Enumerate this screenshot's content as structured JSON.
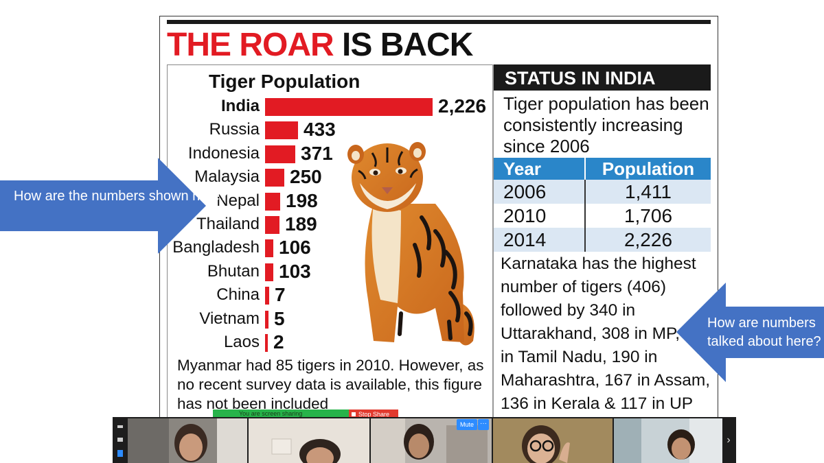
{
  "headline": {
    "red": "THE ROAR",
    "black": "IS BACK"
  },
  "population_chart": {
    "title": "Tiger Population",
    "rows": [
      {
        "country": "India",
        "value_label": "2,226"
      },
      {
        "country": "Russia",
        "value_label": "433"
      },
      {
        "country": "Indonesia",
        "value_label": "371"
      },
      {
        "country": "Malaysia",
        "value_label": "250"
      },
      {
        "country": "Nepal",
        "value_label": "198"
      },
      {
        "country": "Thailand",
        "value_label": "189"
      },
      {
        "country": "Bangladesh",
        "value_label": "106"
      },
      {
        "country": "Bhutan",
        "value_label": "103"
      },
      {
        "country": "China",
        "value_label": "7"
      },
      {
        "country": "Vietnam",
        "value_label": "5"
      },
      {
        "country": "Laos",
        "value_label": "2"
      }
    ],
    "footnote": "Myanmar had 85 tigers in 2010. However, as no recent survey data is available, this figure has not been included"
  },
  "chart_data": {
    "type": "bar",
    "title": "Tiger Population",
    "categories": [
      "India",
      "Russia",
      "Indonesia",
      "Malaysia",
      "Nepal",
      "Thailand",
      "Bangladesh",
      "Bhutan",
      "China",
      "Vietnam",
      "Laos"
    ],
    "values": [
      2226,
      433,
      371,
      250,
      198,
      189,
      106,
      103,
      7,
      5,
      2
    ],
    "orientation": "horizontal",
    "colors": [
      "#e21b23"
    ]
  },
  "status": {
    "heading": "STATUS IN INDIA",
    "intro": "Tiger population has been consistently increasing since 2006",
    "table": {
      "headers": [
        "Year",
        "Population"
      ],
      "rows": [
        [
          "2006",
          "1,411"
        ],
        [
          "2010",
          "1,706"
        ],
        [
          "2014",
          "2,226"
        ]
      ]
    },
    "body": "Karnataka has the highest number of tigers (406) followed by 340 in Uttarakhand, 308 in MP, 229 in Tamil Nadu, 190 in Maharashtra, 167 in Assam, 136 in Kerala & 117 in UP"
  },
  "annotations": {
    "left_arrow": "How are the numbers shown here?",
    "right_arrow": "How are numbers talked about here?"
  },
  "zoom": {
    "sharing_text": "You are screen sharing",
    "stop_share": "Stop Share",
    "mute": "Mute",
    "more": "···",
    "next": "›"
  },
  "colors": {
    "accent_red": "#e21b23",
    "table_blue": "#2a86c9",
    "arrow_blue": "#4472c4",
    "zoom_green": "#27b34a"
  }
}
